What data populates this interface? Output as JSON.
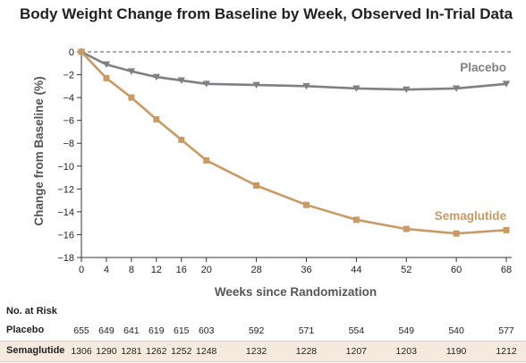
{
  "title": "Body Weight Change from Baseline by Week, Observed In-Trial Data",
  "colors": {
    "placebo": "#7f8084",
    "semaglutide": "#c99a63",
    "axis": "#333333",
    "dashed": "#555555"
  },
  "chart_data": {
    "type": "line",
    "title": "Body Weight Change from Baseline by Week, Observed In-Trial Data",
    "xlabel": "Weeks since Randomization",
    "ylabel": "Change from Baseline (%)",
    "xlim": [
      0,
      68
    ],
    "ylim": [
      -18,
      0
    ],
    "xticks": [
      0,
      4,
      8,
      12,
      16,
      20,
      28,
      36,
      44,
      52,
      60,
      68
    ],
    "yticks": [
      0,
      -2,
      -4,
      -6,
      -8,
      -10,
      -12,
      -14,
      -16,
      -18
    ],
    "x": [
      0,
      4,
      8,
      12,
      16,
      20,
      28,
      36,
      44,
      52,
      60,
      68
    ],
    "series": [
      {
        "name": "Placebo",
        "marker": "triangle-down",
        "values": [
          0,
          -1.1,
          -1.7,
          -2.2,
          -2.5,
          -2.8,
          -2.9,
          -3.0,
          -3.2,
          -3.3,
          -3.2,
          -2.8
        ]
      },
      {
        "name": "Semaglutide",
        "marker": "square",
        "values": [
          0,
          -2.3,
          -4.0,
          -5.9,
          -7.7,
          -9.5,
          -11.7,
          -13.4,
          -14.7,
          -15.5,
          -15.9,
          -15.6
        ]
      }
    ],
    "reference_line": 0,
    "grid": false
  },
  "risk_table": {
    "header": "No. at Risk",
    "rows": [
      {
        "label": "Placebo",
        "values": [
          "655",
          "649",
          "641",
          "619",
          "615",
          "603",
          "592",
          "571",
          "554",
          "549",
          "540",
          "577"
        ]
      },
      {
        "label": "Semaglutide",
        "values": [
          "1306",
          "1290",
          "1281",
          "1262",
          "1252",
          "1248",
          "1232",
          "1228",
          "1207",
          "1203",
          "1190",
          "1212"
        ]
      }
    ]
  }
}
